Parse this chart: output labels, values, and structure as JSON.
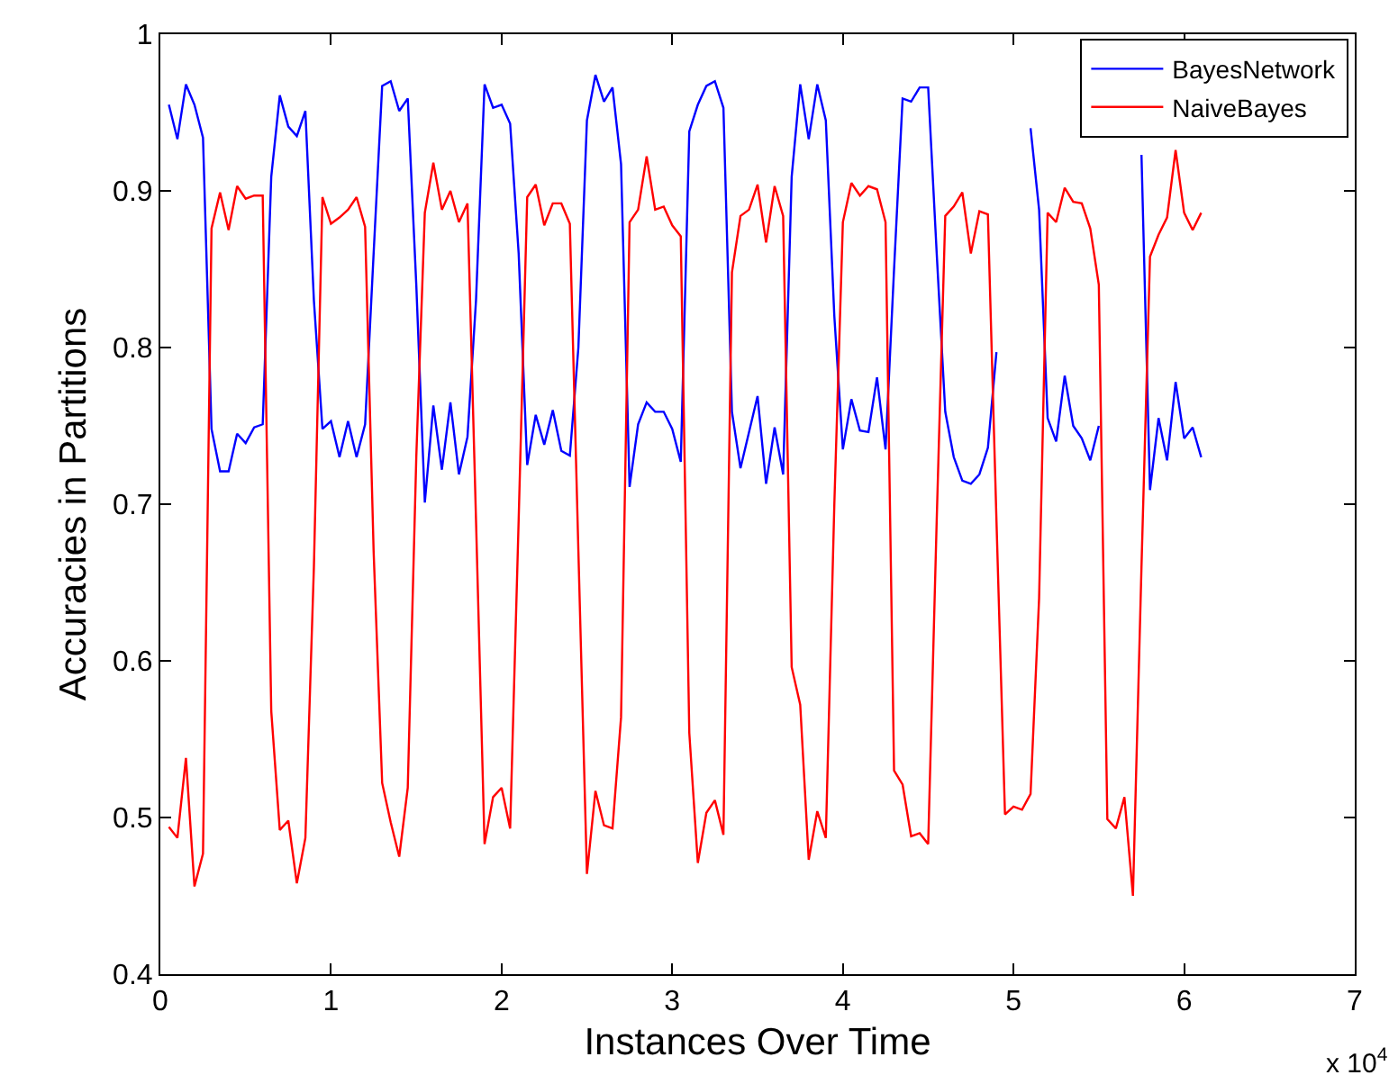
{
  "chart_data": {
    "type": "line",
    "xlabel": "Instances Over Time",
    "ylabel": "Accuracies in Partitions",
    "annotations": [
      "x 10$^{4}$"
    ],
    "x": [
      0.05,
      0.1,
      0.15,
      0.2,
      0.25,
      0.3,
      0.35,
      0.4,
      0.45,
      0.5,
      0.55,
      0.6,
      0.65,
      0.7,
      0.75,
      0.8,
      0.85,
      0.9,
      0.95,
      1.0,
      1.05,
      1.1,
      1.15,
      1.2,
      1.25,
      1.3,
      1.35,
      1.4,
      1.45,
      1.5,
      1.55,
      1.6,
      1.65,
      1.7,
      1.75,
      1.8,
      1.85,
      1.9,
      1.95,
      2.0,
      2.05,
      2.1,
      2.15,
      2.2,
      2.25,
      2.3,
      2.35,
      2.4,
      2.45,
      2.5,
      2.55,
      2.6,
      2.65,
      2.7,
      2.75,
      2.8,
      2.85,
      2.9,
      2.95,
      3.0,
      3.05,
      3.1,
      3.15,
      3.2,
      3.25,
      3.3,
      3.35,
      3.4,
      3.45,
      3.5,
      3.55,
      3.6,
      3.65,
      3.7,
      3.75,
      3.8,
      3.85,
      3.9,
      3.95,
      4.0,
      4.05,
      4.1,
      4.15,
      4.2,
      4.25,
      4.3,
      4.35,
      4.4,
      4.45,
      4.5,
      4.55,
      4.6,
      4.65,
      4.7,
      4.75,
      4.8,
      4.85,
      4.9,
      4.95,
      5.0,
      5.05,
      5.1,
      5.15,
      5.2,
      5.25,
      5.3,
      5.35,
      5.4,
      5.45,
      5.5,
      5.55,
      5.6,
      5.65,
      5.7,
      5.75,
      5.8,
      5.85,
      5.9,
      5.95,
      6.0,
      6.05,
      6.1
    ],
    "series": [
      {
        "name": "BayesNetwork",
        "color": "#0000ff",
        "values": [
          0.955,
          0.933,
          0.968,
          0.955,
          0.934,
          0.748,
          0.721,
          0.721,
          0.745,
          0.739,
          0.749,
          0.751,
          0.909,
          0.961,
          0.941,
          0.935,
          0.951,
          0.83,
          0.748,
          0.753,
          0.73,
          0.753,
          0.73,
          0.751,
          0.86,
          0.967,
          0.97,
          0.951,
          0.959,
          0.84,
          0.701,
          0.763,
          0.722,
          0.765,
          0.719,
          0.743,
          0.83,
          0.968,
          0.953,
          0.955,
          0.943,
          0.86,
          0.725,
          0.757,
          0.738,
          0.76,
          0.734,
          0.731,
          0.8,
          0.945,
          0.974,
          0.957,
          0.966,
          0.917,
          0.711,
          0.751,
          0.765,
          0.759,
          0.759,
          0.748,
          0.727,
          0.938,
          0.955,
          0.967,
          0.97,
          0.953,
          0.759,
          0.723,
          0.746,
          0.769,
          0.713,
          0.749,
          0.719,
          0.909,
          0.968,
          0.933,
          0.968,
          0.945,
          0.82,
          0.735,
          0.767,
          0.747,
          0.746,
          0.781,
          0.735,
          0.85,
          0.959,
          0.957,
          0.966,
          0.966,
          0.86,
          0.759,
          0.73,
          0.715,
          0.713,
          0.719,
          0.736,
          0.797,
          null,
          null,
          null,
          0.94,
          0.888,
          0.755,
          0.74,
          0.782,
          0.75,
          0.742,
          0.728,
          0.75,
          null,
          null,
          null,
          null,
          0.923,
          0.709,
          0.755,
          0.728,
          0.778,
          0.742,
          0.749,
          0.73
        ]
      },
      {
        "name": "NaiveBayes",
        "color": "#ff0000",
        "values": [
          0.494,
          0.487,
          0.538,
          0.456,
          0.477,
          0.876,
          0.899,
          0.875,
          0.903,
          0.895,
          0.897,
          0.897,
          0.568,
          0.492,
          0.498,
          0.458,
          0.487,
          0.66,
          0.896,
          0.879,
          0.883,
          0.888,
          0.896,
          0.877,
          0.67,
          0.522,
          0.497,
          0.475,
          0.519,
          0.73,
          0.886,
          0.918,
          0.888,
          0.9,
          0.88,
          0.892,
          0.69,
          0.483,
          0.513,
          0.519,
          0.493,
          0.69,
          0.896,
          0.904,
          0.878,
          0.892,
          0.892,
          0.879,
          0.67,
          0.464,
          0.517,
          0.495,
          0.493,
          0.564,
          0.88,
          0.888,
          0.922,
          0.888,
          0.89,
          0.878,
          0.871,
          0.554,
          0.471,
          0.503,
          0.511,
          0.489,
          0.848,
          0.884,
          0.888,
          0.904,
          0.867,
          0.903,
          0.884,
          0.596,
          0.572,
          0.473,
          0.504,
          0.487,
          0.7,
          0.88,
          0.905,
          0.897,
          0.903,
          0.901,
          0.88,
          0.53,
          0.521,
          0.488,
          0.49,
          0.483,
          0.69,
          0.884,
          0.89,
          0.899,
          0.86,
          0.887,
          0.885,
          0.69,
          0.502,
          0.507,
          0.505,
          0.515,
          0.64,
          0.886,
          0.88,
          0.902,
          0.893,
          0.892,
          0.876,
          0.84,
          0.499,
          0.493,
          0.513,
          0.45,
          0.66,
          0.858,
          0.872,
          0.883,
          0.926,
          0.886,
          0.875,
          0.886
        ]
      }
    ],
    "xlim": [
      0,
      7
    ],
    "xticks": [
      0,
      1,
      2,
      3,
      4,
      5,
      6,
      7
    ],
    "ylim": [
      0.4,
      1
    ],
    "yticks": [
      0.4,
      0.5,
      0.6,
      0.7,
      0.8,
      0.9,
      1
    ],
    "legend": "top right",
    "marker": "none",
    "line_style": "solid"
  }
}
